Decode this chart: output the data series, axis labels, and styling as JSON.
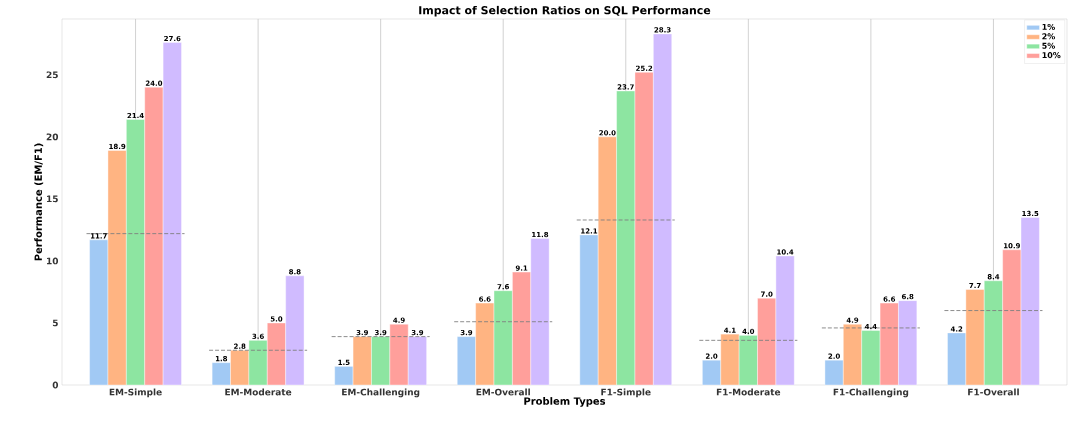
{
  "chart_data": {
    "type": "bar",
    "title": "Impact of Selection Ratios on SQL Performance",
    "xlabel": "Problem Types",
    "ylabel": "Performance (EM/F1)",
    "categories": [
      "EM-Simple",
      "EM-Moderate",
      "EM-Challenging",
      "EM-Overall",
      "F1-Simple",
      "F1-Moderate",
      "F1-Challenging",
      "F1-Overall"
    ],
    "series": [
      {
        "name": "1%",
        "color": "#a1c9f4",
        "values": [
          11.7,
          1.8,
          1.5,
          3.9,
          12.1,
          2.0,
          2.0,
          4.2
        ],
        "value_labels": [
          "11.7",
          "1.8",
          "1.5",
          "3.9",
          "12.1",
          "2.0",
          "2.0",
          "4.2"
        ]
      },
      {
        "name": "2%",
        "color": "#ffb482",
        "values": [
          18.9,
          2.8,
          3.9,
          6.6,
          20.0,
          4.1,
          4.9,
          7.7
        ],
        "value_labels": [
          "18.9",
          "2.8",
          "3.9",
          "6.6",
          "20.0",
          "4.1",
          "4.9",
          "7.7"
        ]
      },
      {
        "name": "5%",
        "color": "#8de5a1",
        "values": [
          21.4,
          3.6,
          3.9,
          7.6,
          23.7,
          4.0,
          4.4,
          8.4
        ],
        "value_labels": [
          "21.4",
          "3.6",
          "3.9",
          "7.6",
          "23.7",
          "4.0",
          "4.4",
          "8.4"
        ]
      },
      {
        "name": "10%",
        "color": "#ff9f9b",
        "values": [
          24.0,
          5.0,
          4.9,
          9.1,
          25.2,
          7.0,
          6.6,
          10.9
        ],
        "value_labels": [
          "24.0",
          "5.0",
          "4.9",
          "9.1",
          "25.2",
          "7.0",
          "6.6",
          "10.9"
        ]
      },
      {
        "color": "#d0bbff",
        "values": [
          27.6,
          8.8,
          3.9,
          11.8,
          28.3,
          10.4,
          6.8,
          13.5
        ],
        "value_labels": [
          "27.6",
          "8.8",
          "3.9",
          "11.8",
          "28.3",
          "10.4",
          "6.8",
          "13.5"
        ]
      }
    ],
    "ref_lines": [
      {
        "axis": "y",
        "value": 12.2,
        "color": "#808080",
        "line_style": "dashed"
      },
      {
        "axis": "y",
        "value": 2.8,
        "color": "#808080",
        "line_style": "dashed"
      },
      {
        "axis": "y",
        "value": 3.9,
        "color": "#808080",
        "line_style": "dashed"
      },
      {
        "axis": "y",
        "value": 5.1,
        "color": "#808080",
        "line_style": "dashed"
      },
      {
        "axis": "y",
        "value": 13.3,
        "color": "#808080",
        "line_style": "dashed"
      },
      {
        "axis": "y",
        "value": 3.6,
        "color": "#808080",
        "line_style": "dashed"
      },
      {
        "axis": "y",
        "value": 4.6,
        "color": "#808080",
        "line_style": "dashed"
      },
      {
        "axis": "y",
        "value": 6.0,
        "color": "#808080",
        "line_style": "dashed"
      }
    ],
    "ylim": [
      0,
      29.5
    ],
    "yticks": [
      0,
      5,
      10,
      15,
      20,
      25
    ],
    "grid": "x",
    "legend": "top right"
  }
}
